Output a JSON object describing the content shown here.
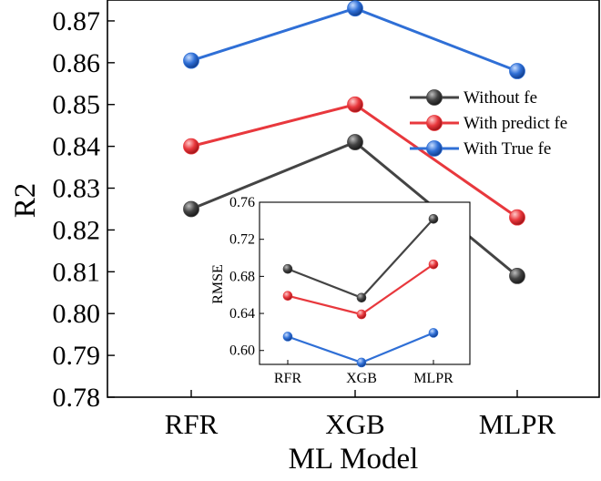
{
  "chart_data": [
    {
      "type": "line",
      "categories": [
        "RFR",
        "XGB",
        "MLPR"
      ],
      "xlabel": "ML Model",
      "ylabel": "R2",
      "ylim": [
        0.78,
        0.875
      ],
      "yticks": [
        "0.78",
        "0.79",
        "0.80",
        "0.81",
        "0.82",
        "0.83",
        "0.84",
        "0.85",
        "0.86",
        "0.87"
      ],
      "legend_position": "right",
      "series": [
        {
          "name": "Without fe",
          "color": "#444444",
          "values": [
            0.825,
            0.841,
            0.809
          ]
        },
        {
          "name": "With predict fe",
          "color": "#e8383d",
          "values": [
            0.84,
            0.85,
            0.823
          ]
        },
        {
          "name": "With True fe",
          "color": "#2f6fd6",
          "values": [
            0.8605,
            0.873,
            0.858
          ]
        }
      ]
    },
    {
      "type": "line",
      "categories": [
        "RFR",
        "XGB",
        "MLPR"
      ],
      "ylabel": "RMSE",
      "ylim": [
        0.585,
        0.76
      ],
      "yticks": [
        "0.60",
        "0.64",
        "0.68",
        "0.72",
        "0.76"
      ],
      "series": [
        {
          "color": "#444444",
          "values": [
            0.688,
            0.657,
            0.742
          ]
        },
        {
          "color": "#e8383d",
          "values": [
            0.659,
            0.639,
            0.693
          ]
        },
        {
          "color": "#2f6fd6",
          "values": [
            0.615,
            0.587,
            0.619
          ]
        }
      ]
    }
  ]
}
